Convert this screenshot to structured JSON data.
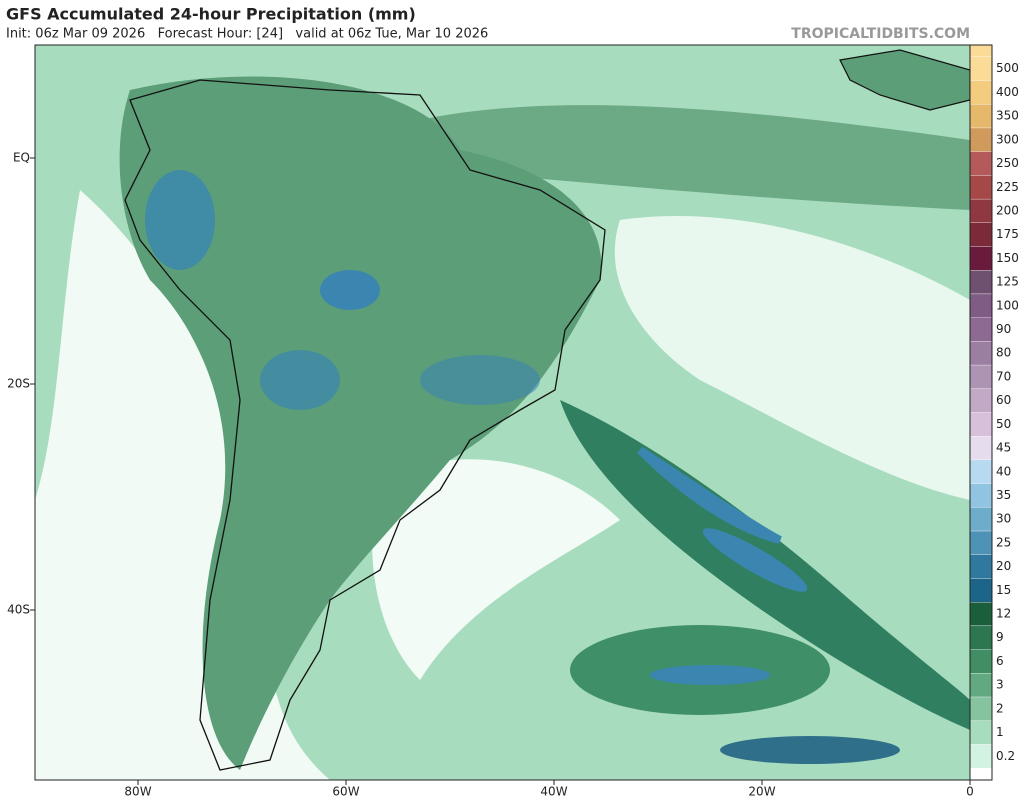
{
  "header": {
    "title": "GFS Accumulated 24-hour Precipitation (mm)",
    "subtitle": "Init: 06z Mar 09 2026   Forecast Hour: [24]   valid at 06z Tue, Mar 10 2026",
    "watermark": "TROPICALTIDBITS.COM"
  },
  "map": {
    "lat_labels": [
      "EQ",
      "20S",
      "40S"
    ],
    "lon_labels": [
      "80W",
      "60W",
      "40W",
      "20W",
      "0"
    ]
  },
  "colorbar": {
    "levels": [
      500,
      400,
      350,
      300,
      250,
      225,
      200,
      175,
      150,
      125,
      100,
      90,
      80,
      70,
      60,
      50,
      45,
      40,
      35,
      30,
      25,
      20,
      15,
      12,
      9,
      6,
      3,
      2,
      1,
      0.2
    ],
    "colors": [
      "#fadc98",
      "#f4cc80",
      "#e6b86c",
      "#d09a5c",
      "#b45a5a",
      "#a44848",
      "#903842",
      "#7c2a3a",
      "#6a1a3c",
      "#705070",
      "#7e5c84",
      "#8c6a92",
      "#9c7ea2",
      "#ae94b4",
      "#c2aac6",
      "#d6c0da",
      "#e6dcee",
      "#b8daf0",
      "#90c4e0",
      "#6eaccc",
      "#4e92b6",
      "#30789e",
      "#1c6488",
      "#1a5e3c",
      "#2c7650",
      "#428e64",
      "#62a880",
      "#86c4a0",
      "#a8dcbe",
      "#d2f2e2"
    ]
  }
}
